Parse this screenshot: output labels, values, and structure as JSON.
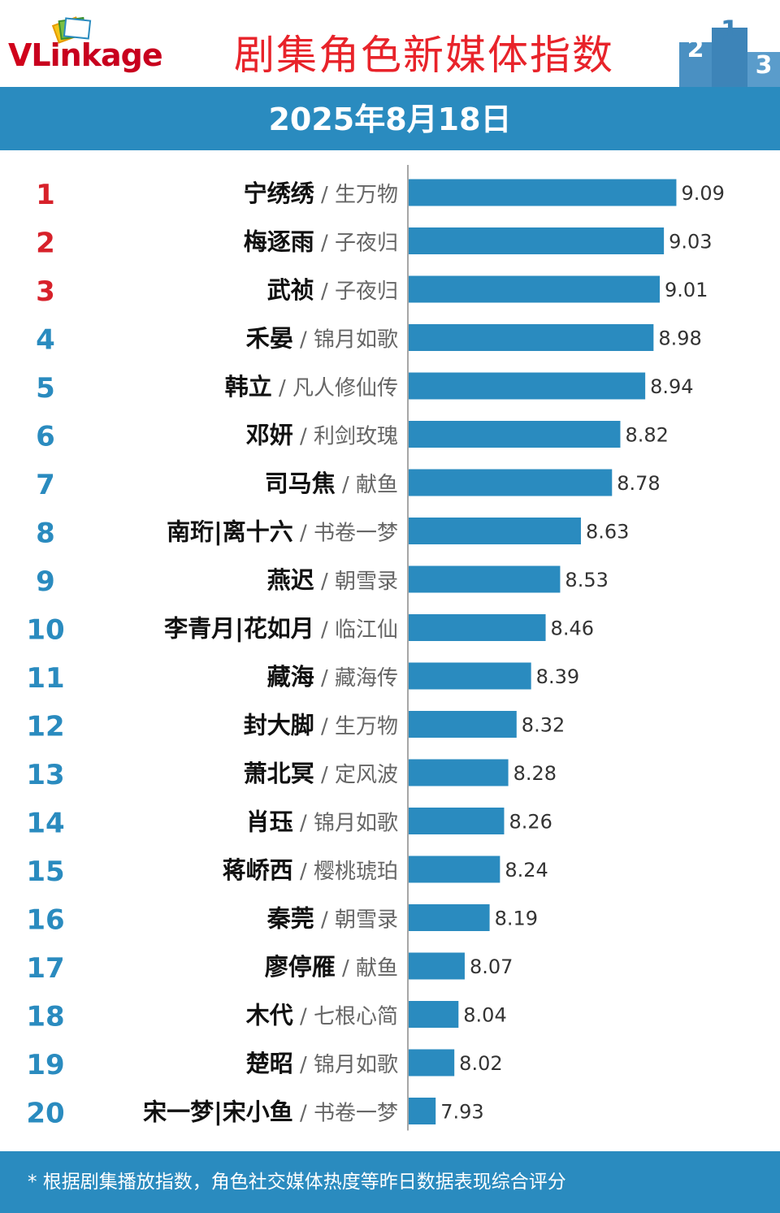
{
  "brand": {
    "logo_v": "V",
    "logo_rest": "Linkage"
  },
  "title": "剧集角色新媒体指数",
  "date": "2025年8月18日",
  "footer": "* 根据剧集播放指数，角色社交媒体热度等昨日数据表现综合评分",
  "colors": {
    "bar": "#2a8bbf",
    "top_rank": "#d7212a",
    "rank": "#2a8bbf",
    "title": "#e8232a",
    "band": "#2a8bbf"
  },
  "chart_data": {
    "type": "bar",
    "orientation": "horizontal",
    "title": "剧集角色新媒体指数",
    "xlabel": "",
    "ylabel": "",
    "xlim": [
      7.8,
      9.1
    ],
    "grid": false,
    "legend": "none",
    "ranks": [
      "1",
      "2",
      "3",
      "4",
      "5",
      "6",
      "7",
      "8",
      "9",
      "10",
      "11",
      "12",
      "13",
      "14",
      "15",
      "16",
      "17",
      "18",
      "19",
      "20"
    ],
    "characters": [
      "宁绣绣",
      "梅逐雨",
      "武祯",
      "禾晏",
      "韩立",
      "邓妍",
      "司马焦",
      "南珩|离十六",
      "燕迟",
      "李青月|花如月",
      "藏海",
      "封大脚",
      "萧北冥",
      "肖珏",
      "蒋峤西",
      "秦莞",
      "廖停雁",
      "木代",
      "楚昭",
      "宋一梦|宋小鱼"
    ],
    "dramas": [
      "生万物",
      "子夜归",
      "子夜归",
      "锦月如歌",
      "凡人修仙传",
      "利剑玫瑰",
      "献鱼",
      "书卷一梦",
      "朝雪录",
      "临江仙",
      "藏海传",
      "生万物",
      "定风波",
      "锦月如歌",
      "樱桃琥珀",
      "朝雪录",
      "献鱼",
      "七根心简",
      "锦月如歌",
      "书卷一梦"
    ],
    "values": [
      9.09,
      9.03,
      9.01,
      8.98,
      8.94,
      8.82,
      8.78,
      8.63,
      8.53,
      8.46,
      8.39,
      8.32,
      8.28,
      8.26,
      8.24,
      8.19,
      8.07,
      8.04,
      8.02,
      7.93
    ]
  }
}
